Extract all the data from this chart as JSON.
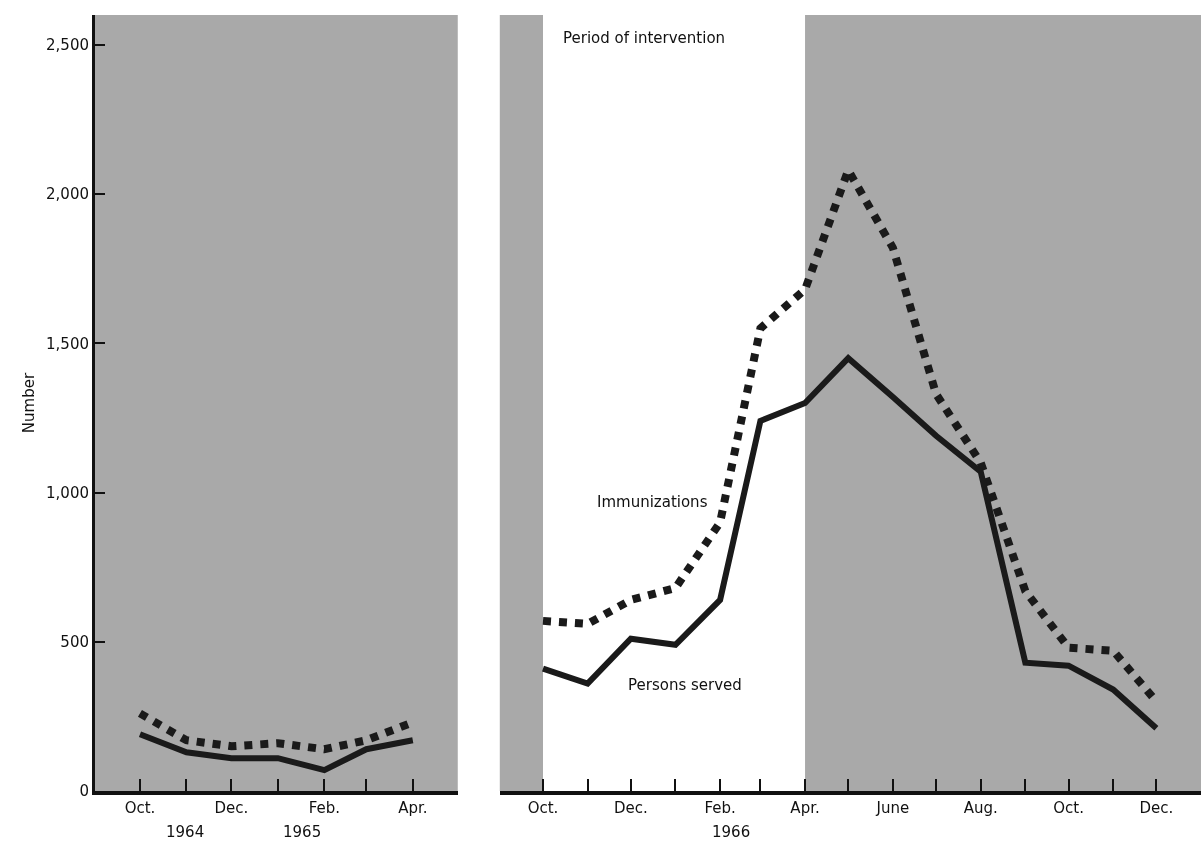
{
  "chart_data": [
    {
      "type": "line",
      "ylabel": "Number",
      "x": [
        "1964-10",
        "1964-11",
        "1964-12",
        "1965-01",
        "1965-02",
        "1965-03",
        "1965-04"
      ],
      "series": [
        {
          "color": "#1a1a1a",
          "line_style": "dotted",
          "values": [
            260,
            170,
            150,
            160,
            140,
            170,
            230
          ]
        },
        {
          "color": "#1a1a1a",
          "line_style": "solid",
          "values": [
            190,
            130,
            110,
            110,
            70,
            140,
            170
          ]
        }
      ],
      "annotations": [
        "1964",
        "1965"
      ],
      "xlim": [
        "1964-09",
        "1965-05"
      ],
      "xticks": [
        {
          "value": "1964-10",
          "label": "Oct."
        },
        {
          "value": "1964-11",
          "label": null
        },
        {
          "value": "1964-12",
          "label": "Dec."
        },
        {
          "value": "1965-01",
          "label": null
        },
        {
          "value": "1965-02",
          "label": "Feb."
        },
        {
          "value": "1965-03",
          "label": null
        },
        {
          "value": "1965-04",
          "label": "Apr."
        }
      ],
      "ylim": [
        0,
        2600
      ],
      "yticks": [
        0,
        {
          "value": 500,
          "label": "500"
        },
        {
          "value": 1000,
          "label": "1,000"
        },
        {
          "value": 1500,
          "label": "1,500"
        },
        {
          "value": 2000,
          "label": "2,000"
        },
        {
          "value": 2500,
          "label": "2,500"
        }
      ],
      "grid": false,
      "legend": false
    },
    {
      "type": "line",
      "x": [
        "1965-10",
        "1965-11",
        "1965-12",
        "1966-01",
        "1966-02",
        "1966-03",
        "1966-04",
        "1966-05",
        "1966-06",
        "1966-07",
        "1966-08",
        "1966-09",
        "1966-10",
        "1966-11",
        "1966-12"
      ],
      "series": [
        {
          "name": "Immunizations",
          "color": "#1a1a1a",
          "line_style": "dotted",
          "values": [
            570,
            560,
            640,
            680,
            900,
            1550,
            1680,
            2080,
            1820,
            1330,
            1100,
            670,
            480,
            470,
            300
          ]
        },
        {
          "name": "Persons served",
          "color": "#1a1a1a",
          "line_style": "solid",
          "values": [
            410,
            360,
            510,
            490,
            640,
            1240,
            1300,
            1450,
            1320,
            1190,
            1070,
            430,
            420,
            340,
            210
          ]
        }
      ],
      "xlim": [
        "1965-09",
        "1967-01"
      ],
      "xticks": [
        {
          "value": "1965-10",
          "label": "Oct."
        },
        {
          "value": "1965-11",
          "label": null
        },
        {
          "value": "1965-12",
          "label": "Dec."
        },
        {
          "value": "1966-01",
          "label": null
        },
        {
          "value": "1966-02",
          "label": "Feb."
        },
        {
          "value": "1966-03",
          "label": null
        },
        {
          "value": "1966-04",
          "label": "Apr."
        },
        {
          "value": "1966-05",
          "label": null
        },
        {
          "value": "1966-06",
          "label": "June"
        },
        {
          "value": "1966-07",
          "label": null
        },
        {
          "value": "1966-08",
          "label": "Aug."
        },
        {
          "value": "1966-09",
          "label": null
        },
        {
          "value": "1966-10",
          "label": "Oct."
        },
        {
          "value": "1966-11",
          "label": null
        },
        {
          "value": "1966-12",
          "label": "Dec."
        }
      ],
      "ylim": [
        0,
        2600
      ],
      "annotations": [
        "1966"
      ],
      "bands": [
        {
          "axis": "x",
          "from": "1965-10",
          "to": "1966-04",
          "label": "Period of intervention",
          "color": "#ffffff"
        }
      ],
      "tick_labels": "x",
      "grid": false,
      "legend": false
    }
  ]
}
